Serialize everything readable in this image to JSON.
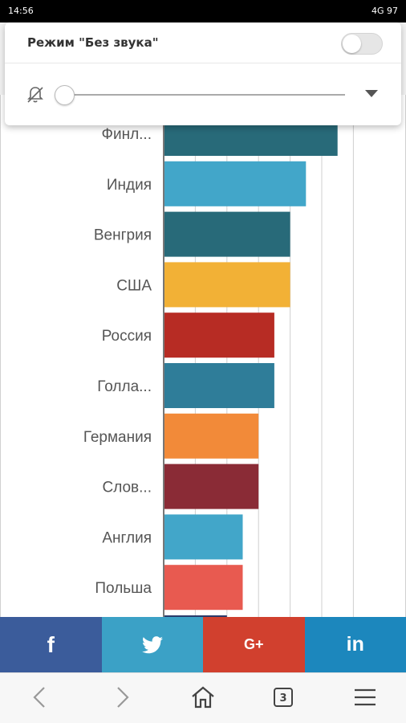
{
  "status_bar": {
    "time": "14:56",
    "indicators": "4G 97"
  },
  "notification": {
    "title": "Режим \"Без звука\"",
    "toggle_on": false,
    "volume_level": 0,
    "icons": {
      "mute": "bell-off-icon",
      "expand": "triangle-down-icon"
    }
  },
  "chart_data": {
    "type": "bar",
    "orientation": "horizontal",
    "categories": [
      "Финл...",
      "Индия",
      "Венгрия",
      "США",
      "Россия",
      "Голла...",
      "Германия",
      "Слов...",
      "Англия",
      "Польша",
      ""
    ],
    "values": [
      11,
      9,
      8,
      8,
      7,
      7,
      6,
      6,
      5,
      5,
      4
    ],
    "colors": [
      "#286a79",
      "#42a6c9",
      "#286a79",
      "#f2b136",
      "#b72c24",
      "#2f7d99",
      "#f28a39",
      "#8a2b36",
      "#42a6c9",
      "#e85a50",
      "#2a3a6a"
    ],
    "xlim": [
      0,
      12
    ],
    "grid": true
  },
  "share_bar": {
    "buttons": [
      {
        "label": "f",
        "color": "#3b5c9b",
        "icon": "facebook-icon"
      },
      {
        "label": "",
        "color": "#3ba1c6",
        "icon": "twitter-icon"
      },
      {
        "label": "G+",
        "color": "#d1402e",
        "icon": "google-plus-icon"
      },
      {
        "label": "in",
        "color": "#1c87bd",
        "icon": "linkedin-icon"
      }
    ]
  },
  "nav_bar": {
    "tab_count": "3",
    "icons": [
      "back-icon",
      "forward-icon",
      "home-icon",
      "tabs-icon",
      "menu-icon"
    ]
  }
}
